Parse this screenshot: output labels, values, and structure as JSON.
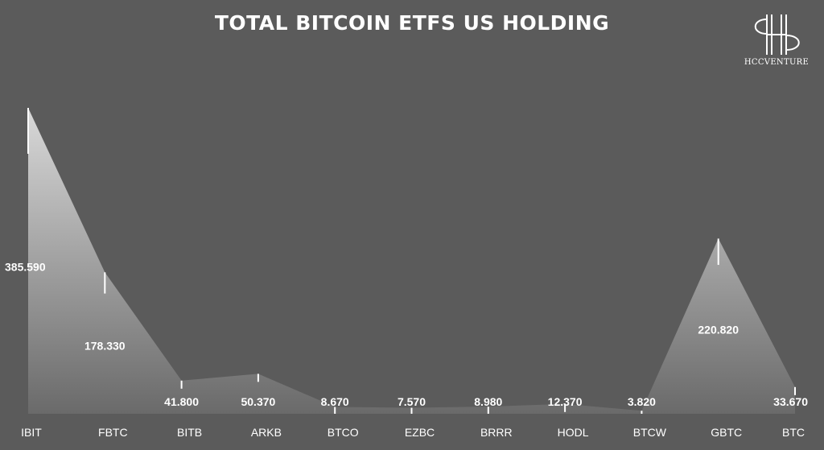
{
  "brand": {
    "logo_text": "HCCVENTURE"
  },
  "chart_data": {
    "type": "area",
    "title": "TOTAL BITCOIN ETFS US HOLDING",
    "categories": [
      "IBIT",
      "FBTC",
      "BITB",
      "ARKB",
      "BTCO",
      "EZBC",
      "BRRR",
      "HODL",
      "BTCW",
      "GBTC",
      "BTC"
    ],
    "values": [
      385.59,
      178.33,
      41.8,
      50.37,
      8.67,
      7.57,
      8.98,
      12.37,
      3.82,
      220.82,
      33.67
    ],
    "value_labels": [
      "385.590",
      "178.330",
      "41.800",
      "50.370",
      "8.670",
      "7.570",
      "8.980",
      "12.370",
      "3.820",
      "220.820",
      "33.670"
    ],
    "xlabel": "",
    "ylabel": "",
    "grid": false,
    "colors": {
      "background": "#5b5b5b",
      "fill_top": "#d9d9d9",
      "fill_bottom": "#6a6a6a",
      "text": "#ffffff"
    }
  }
}
